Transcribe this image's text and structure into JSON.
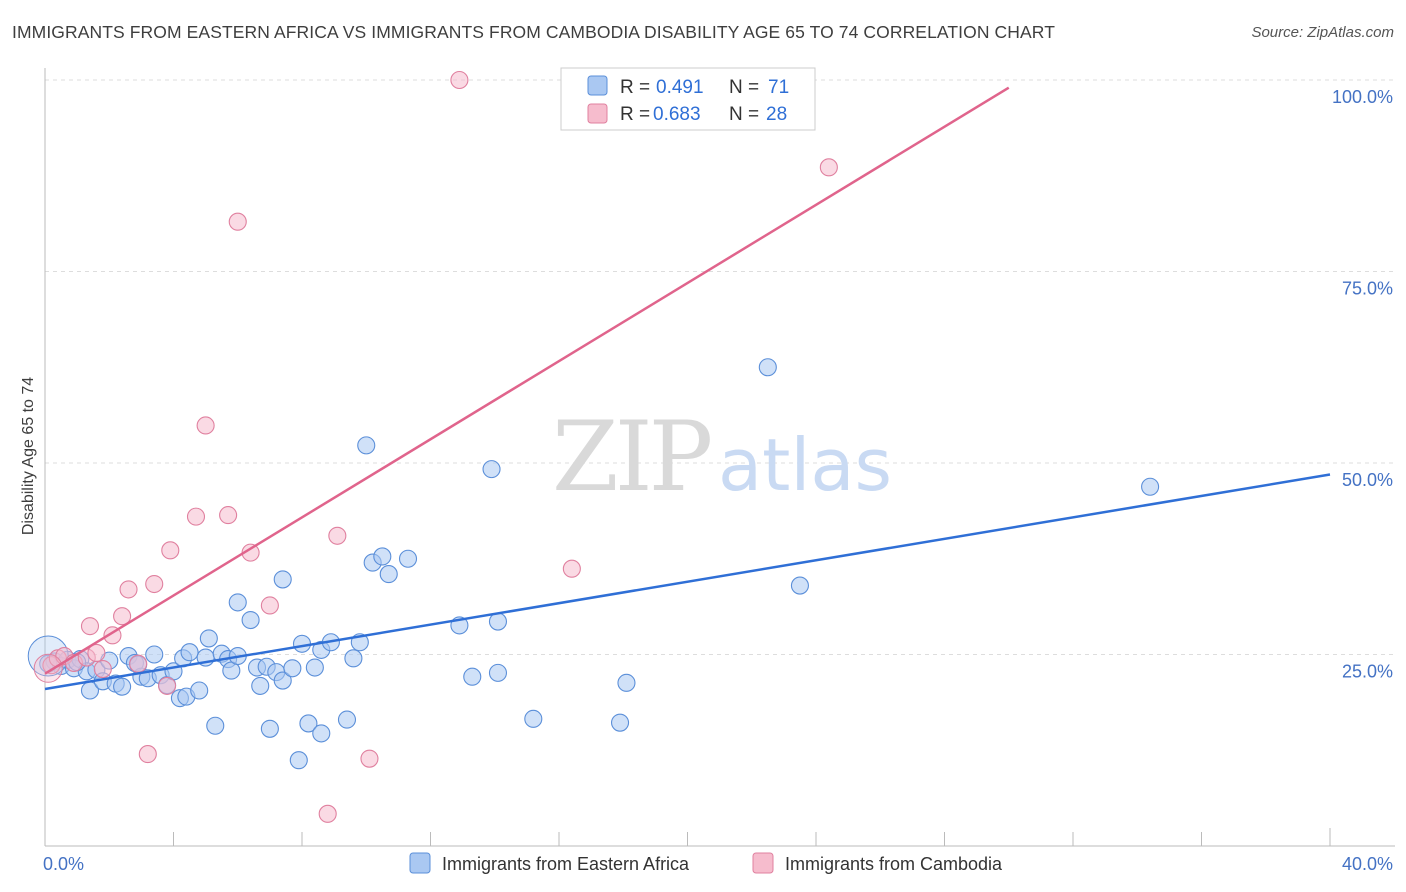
{
  "title": "IMMIGRANTS FROM EASTERN AFRICA VS IMMIGRANTS FROM CAMBODIA DISABILITY AGE 65 TO 74 CORRELATION CHART",
  "source": "Source: ZipAtlas.com",
  "watermark": {
    "zip": "ZIP",
    "atlas": "atlas"
  },
  "colors": {
    "blue_fill": "#aac8f2",
    "blue_stroke": "#5b8fd9",
    "blue_line": "#2f6fd6",
    "pink_fill": "#f6bccd",
    "pink_stroke": "#e0809f",
    "pink_line": "#e0648c",
    "tick_label": "#4472c4",
    "grid": "#dddddd"
  },
  "legend": {
    "r_label": "R =",
    "n_label": "N =",
    "rows": [
      {
        "r": "0.491",
        "n": "71"
      },
      {
        "r": "0.683",
        "n": "28"
      }
    ]
  },
  "chart_data": {
    "type": "scatter",
    "title": "IMMIGRANTS FROM EASTERN AFRICA VS IMMIGRANTS FROM CAMBODIA DISABILITY AGE 65 TO 74 CORRELATION CHART",
    "xlabel": "",
    "ylabel": "Disability Age 65 to 74",
    "xlim": [
      0,
      40
    ],
    "ylim": [
      0,
      100
    ],
    "x_tick_labels": [
      "0.0%",
      "40.0%"
    ],
    "y_ticks": [
      25,
      50,
      75,
      100
    ],
    "y_tick_labels": [
      "25.0%",
      "50.0%",
      "75.0%",
      "100.0%"
    ],
    "grid": true,
    "series": [
      {
        "name": "Immigrants from Eastern Africa",
        "color": "#aac8f2",
        "R": 0.491,
        "N": 71,
        "trendline": {
          "x": [
            0,
            40
          ],
          "y": [
            20.5,
            48.5
          ]
        },
        "points": [
          [
            0.3,
            24.1
          ],
          [
            0.5,
            23.5
          ],
          [
            0.7,
            24.3
          ],
          [
            0.9,
            23.2
          ],
          [
            1.1,
            24.4
          ],
          [
            1.3,
            22.8
          ],
          [
            1.4,
            20.3
          ],
          [
            1.6,
            23.0
          ],
          [
            1.8,
            21.5
          ],
          [
            2.0,
            24.2
          ],
          [
            2.2,
            21.2
          ],
          [
            2.4,
            20.8
          ],
          [
            2.6,
            24.8
          ],
          [
            2.8,
            23.9
          ],
          [
            3.0,
            22.1
          ],
          [
            3.2,
            21.9
          ],
          [
            3.4,
            25.0
          ],
          [
            3.6,
            22.3
          ],
          [
            3.8,
            21.0
          ],
          [
            4.0,
            22.8
          ],
          [
            4.2,
            19.3
          ],
          [
            4.3,
            24.5
          ],
          [
            4.4,
            19.5
          ],
          [
            4.5,
            25.3
          ],
          [
            4.8,
            20.3
          ],
          [
            5.0,
            24.6
          ],
          [
            5.1,
            27.1
          ],
          [
            5.3,
            15.7
          ],
          [
            5.5,
            25.1
          ],
          [
            5.7,
            24.4
          ],
          [
            5.8,
            22.9
          ],
          [
            6.0,
            24.8
          ],
          [
            6.0,
            31.8
          ],
          [
            6.4,
            29.5
          ],
          [
            6.6,
            23.3
          ],
          [
            6.7,
            20.9
          ],
          [
            6.9,
            23.4
          ],
          [
            7.0,
            15.3
          ],
          [
            7.2,
            22.7
          ],
          [
            7.4,
            34.8
          ],
          [
            7.4,
            21.6
          ],
          [
            7.7,
            23.2
          ],
          [
            7.9,
            11.2
          ],
          [
            8.0,
            26.4
          ],
          [
            8.2,
            16.0
          ],
          [
            8.4,
            23.3
          ],
          [
            8.6,
            14.7
          ],
          [
            8.6,
            25.6
          ],
          [
            8.9,
            26.6
          ],
          [
            9.4,
            16.5
          ],
          [
            9.6,
            24.5
          ],
          [
            9.8,
            26.6
          ],
          [
            10.0,
            52.3
          ],
          [
            10.2,
            37.0
          ],
          [
            10.5,
            37.8
          ],
          [
            10.7,
            35.5
          ],
          [
            11.3,
            37.5
          ],
          [
            12.9,
            28.8
          ],
          [
            13.3,
            22.1
          ],
          [
            13.9,
            49.2
          ],
          [
            14.1,
            29.3
          ],
          [
            14.1,
            22.6
          ],
          [
            15.2,
            16.6
          ],
          [
            17.9,
            16.1
          ],
          [
            18.1,
            21.3
          ],
          [
            22.5,
            62.5
          ],
          [
            23.5,
            34.0
          ],
          [
            34.4,
            46.9
          ],
          [
            0.1,
            23.8
          ],
          [
            1.0,
            24.0
          ],
          [
            2.9,
            23.7
          ]
        ]
      },
      {
        "name": "Immigrants from Cambodia",
        "color": "#f6bccd",
        "R": 0.683,
        "N": 28,
        "trendline": {
          "x": [
            0,
            30
          ],
          "y": [
            22.5,
            99.0
          ]
        },
        "points": [
          [
            0.2,
            23.6
          ],
          [
            0.4,
            24.5
          ],
          [
            0.6,
            24.8
          ],
          [
            0.9,
            23.9
          ],
          [
            1.3,
            24.6
          ],
          [
            1.4,
            28.7
          ],
          [
            1.6,
            25.2
          ],
          [
            1.8,
            23.1
          ],
          [
            2.1,
            27.5
          ],
          [
            2.4,
            30.0
          ],
          [
            2.6,
            33.5
          ],
          [
            2.9,
            23.8
          ],
          [
            3.2,
            12.0
          ],
          [
            3.4,
            34.2
          ],
          [
            3.8,
            20.9
          ],
          [
            3.9,
            38.6
          ],
          [
            4.7,
            43.0
          ],
          [
            5.0,
            54.9
          ],
          [
            5.7,
            43.2
          ],
          [
            6.0,
            81.5
          ],
          [
            6.4,
            38.3
          ],
          [
            7.0,
            31.4
          ],
          [
            8.8,
            4.2
          ],
          [
            9.1,
            40.5
          ],
          [
            10.1,
            11.4
          ],
          [
            12.9,
            100.0
          ],
          [
            16.4,
            36.2
          ],
          [
            24.4,
            88.6
          ]
        ]
      }
    ]
  }
}
